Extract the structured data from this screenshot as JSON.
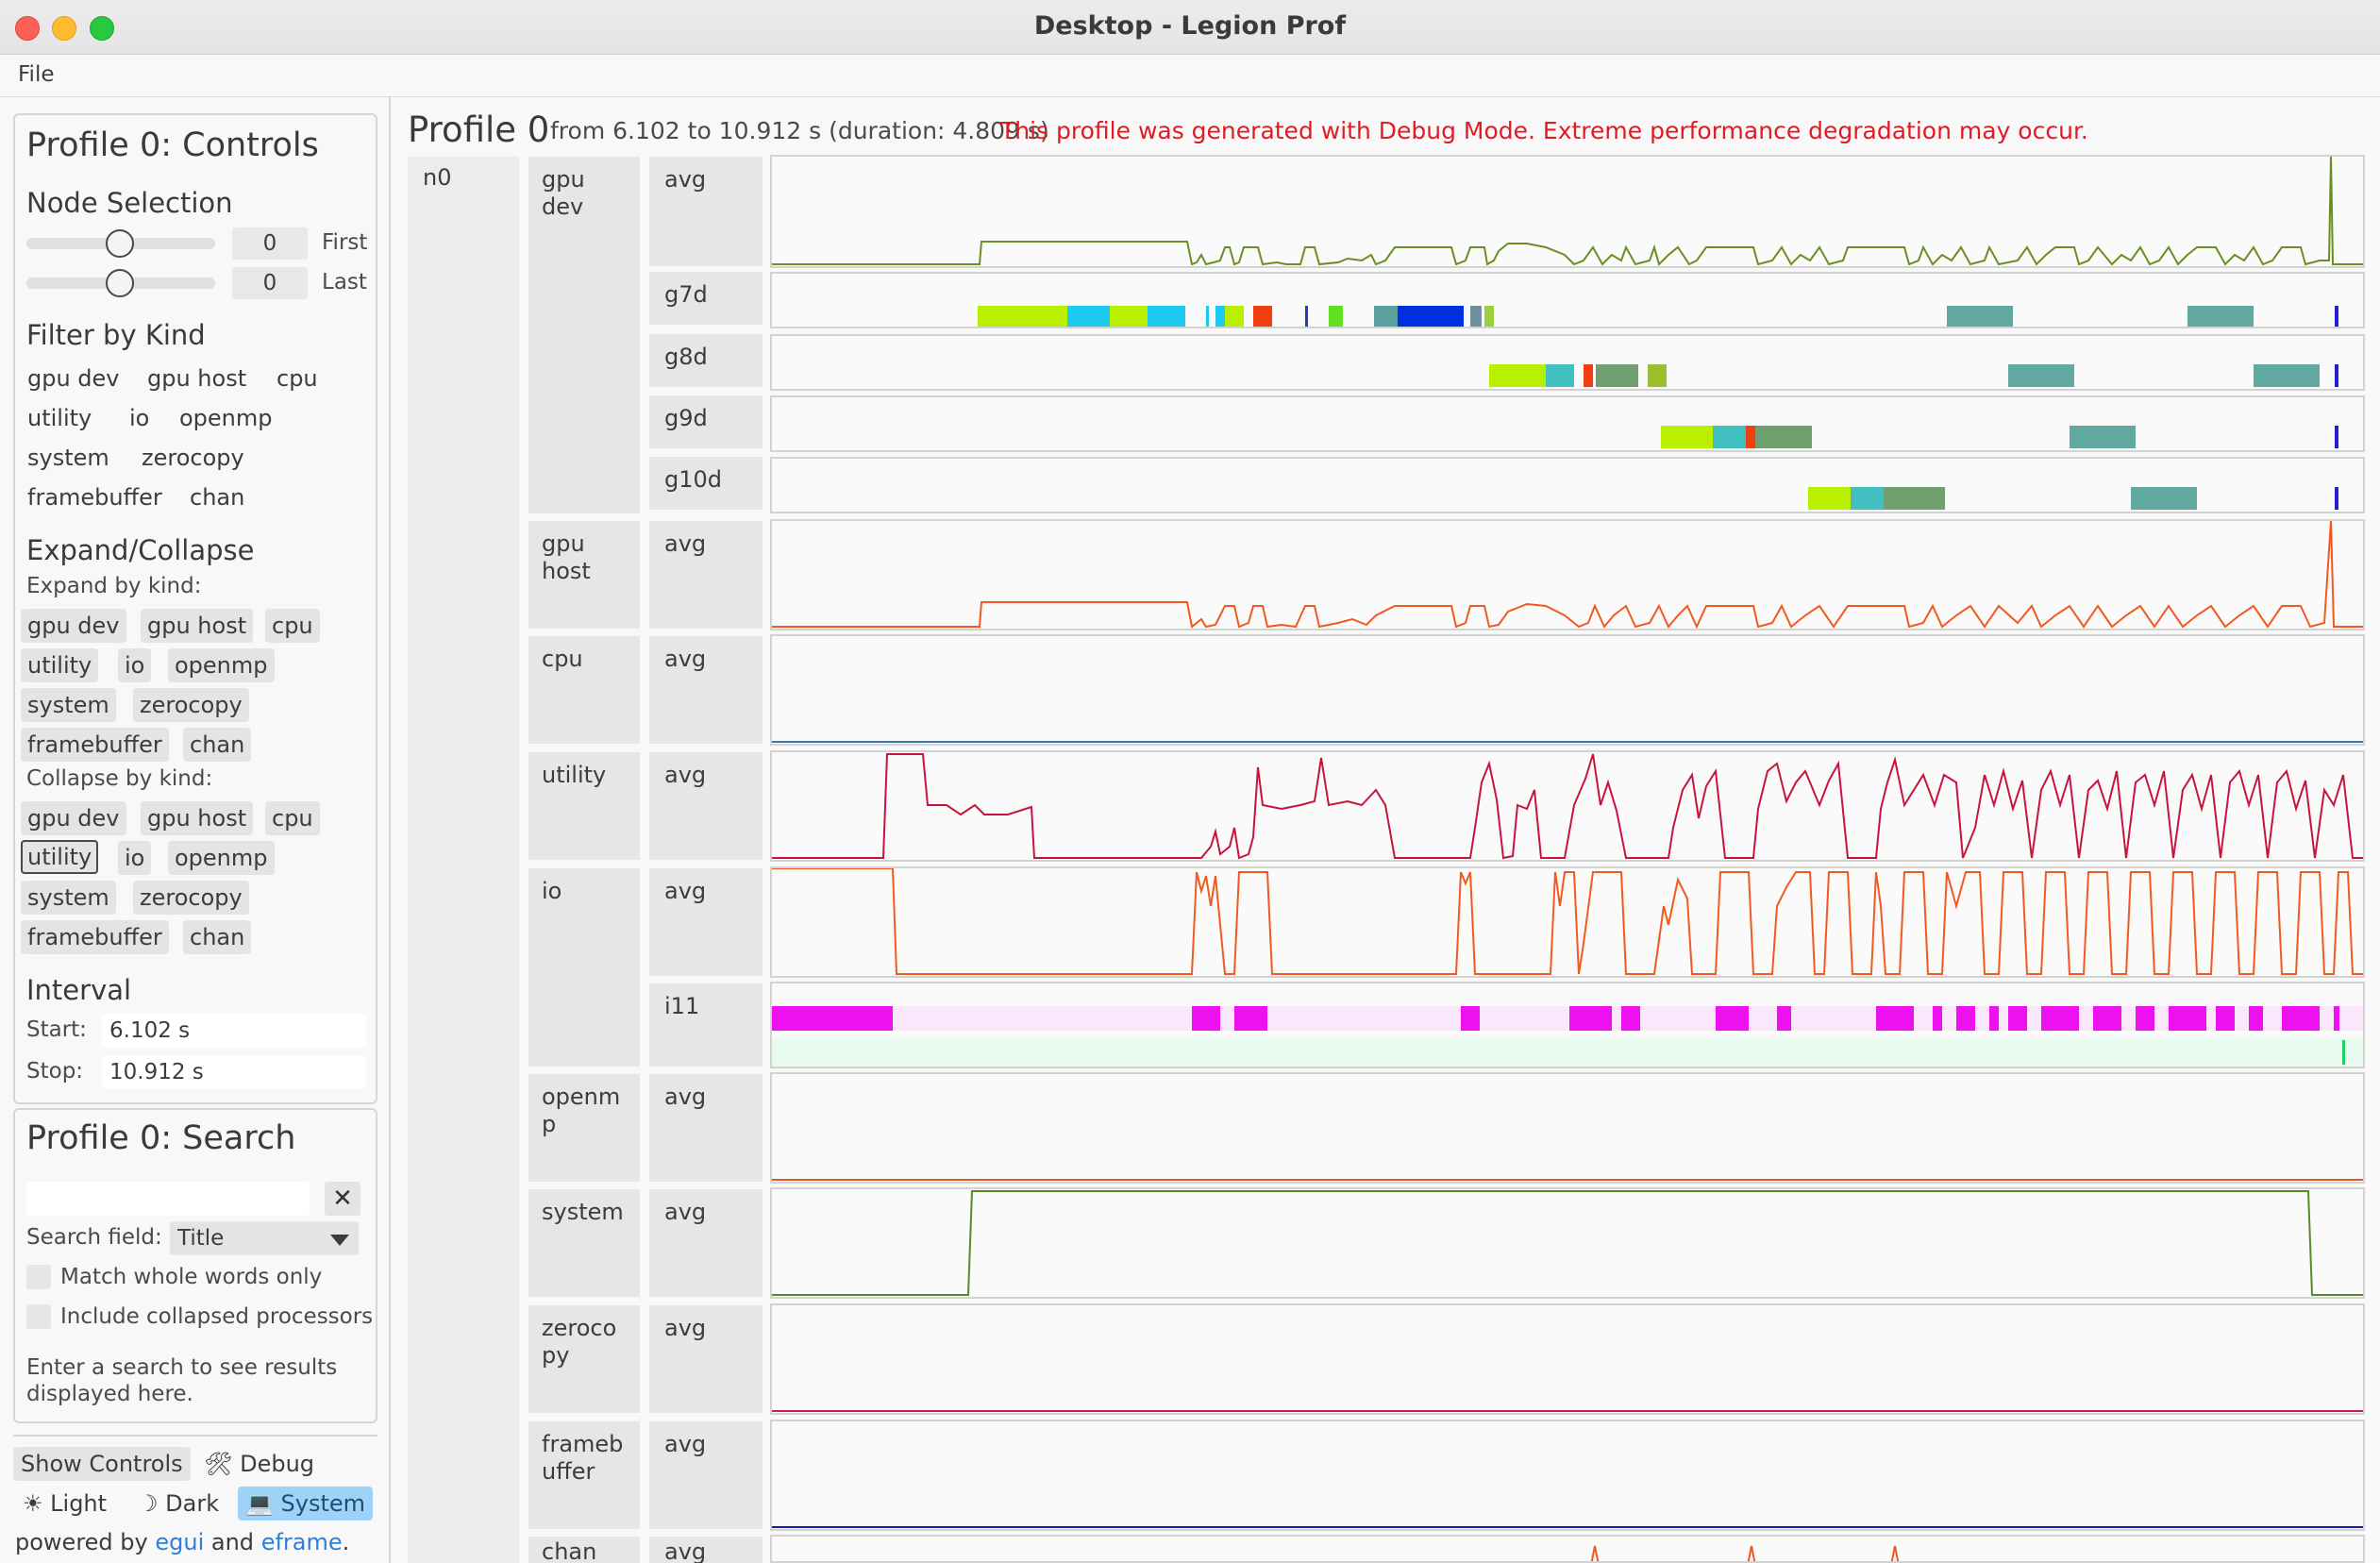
{
  "window": {
    "title": "Desktop - Legion Prof"
  },
  "menu": {
    "file": "File"
  },
  "controls": {
    "title": "Profile 0: Controls",
    "node_selection": {
      "heading": "Node Selection",
      "first_value": "0",
      "first_label": "First",
      "last_value": "0",
      "last_label": "Last"
    },
    "filter": {
      "heading": "Filter by Kind",
      "kinds": [
        "gpu dev",
        "gpu host",
        "cpu",
        "utility",
        "io",
        "openmp",
        "system",
        "zerocopy",
        "framebuffer",
        "chan"
      ]
    },
    "expand_collapse": {
      "heading": "Expand/Collapse",
      "expand_label": "Expand by kind:",
      "collapse_label": "Collapse by kind:",
      "kinds": [
        "gpu dev",
        "gpu host",
        "cpu",
        "utility",
        "io",
        "openmp",
        "system",
        "zerocopy",
        "framebuffer",
        "chan"
      ],
      "collapse_selected": "utility"
    },
    "interval": {
      "heading": "Interval",
      "start_label": "Start:",
      "start_value": "6.102 s",
      "stop_label": "Stop:",
      "stop_value": "10.912 s"
    }
  },
  "search": {
    "title": "Profile 0: Search",
    "query": "",
    "clear": "✕",
    "field_label": "Search field:",
    "field_value": "Title",
    "match_whole": "Match whole words only",
    "include_collapsed": "Include collapsed processors",
    "hint_line1": "Enter a search to see results",
    "hint_line2": "displayed here."
  },
  "bottom": {
    "show_controls": "Show Controls",
    "debug": "Debug",
    "debug_icon": "🛠",
    "light": "Light",
    "light_icon": "☀",
    "dark": "Dark",
    "dark_icon": "☽",
    "system": "System",
    "system_icon": "💻",
    "powered_prefix": "powered by",
    "egui": "egui",
    "and": "and",
    "eframe": "eframe",
    "period": "."
  },
  "profile": {
    "title": "Profile 0",
    "range": "from 6.102 to 10.912 s (duration: 4.809 s)",
    "warning": "This profile was generated with Debug Mode. Extreme performance degradation may occur.",
    "node": "n0",
    "kinds": [
      {
        "label": "gpu\ndev",
        "rows": [
          "avg",
          "g7d",
          "g8d",
          "g9d",
          "g10d"
        ]
      },
      {
        "label": "gpu\nhost",
        "rows": [
          "avg"
        ]
      },
      {
        "label": "cpu",
        "rows": [
          "avg"
        ]
      },
      {
        "label": "utility",
        "rows": [
          "avg"
        ]
      },
      {
        "label": "io",
        "rows": [
          "avg",
          "i11"
        ]
      },
      {
        "label": "openm\np",
        "rows": [
          "avg"
        ]
      },
      {
        "label": "system",
        "rows": [
          "avg"
        ]
      },
      {
        "label": "zeroco\npy",
        "rows": [
          "avg"
        ]
      },
      {
        "label": "frameb\nuffer",
        "rows": [
          "avg"
        ]
      },
      {
        "label": "chan",
        "rows": [
          "avg"
        ]
      }
    ]
  },
  "colors": {
    "gpu_dev": "#6b8e23",
    "gpu_host": "#f05a1e",
    "cpu": "#3a78a8",
    "utility": "#c8143c",
    "io": "#f05a1e",
    "openmp": "#e05a1e",
    "system": "#5a8a28",
    "zerocopy": "#d0204a",
    "framebuffer": "#1a1aa0",
    "warning": "#e01b24"
  }
}
